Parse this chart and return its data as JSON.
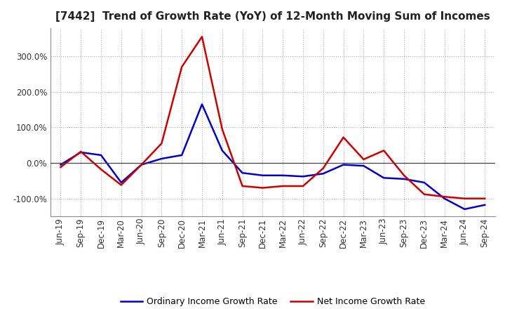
{
  "title": "[7442]  Trend of Growth Rate (YoY) of 12-Month Moving Sum of Incomes",
  "x_labels": [
    "Jun-19",
    "Sep-19",
    "Dec-19",
    "Mar-20",
    "Jun-20",
    "Sep-20",
    "Dec-20",
    "Mar-21",
    "Jun-21",
    "Sep-21",
    "Dec-21",
    "Mar-22",
    "Jun-22",
    "Sep-22",
    "Dec-22",
    "Mar-23",
    "Jun-23",
    "Sep-23",
    "Dec-23",
    "Mar-24",
    "Jun-24",
    "Sep-24"
  ],
  "ordinary_income": [
    -5,
    30,
    22,
    -55,
    -5,
    12,
    22,
    165,
    35,
    -28,
    -35,
    -35,
    -38,
    -30,
    -5,
    -8,
    -42,
    -45,
    -55,
    -100,
    -130,
    -118
  ],
  "net_income": [
    -12,
    32,
    -18,
    -62,
    -5,
    55,
    270,
    355,
    95,
    -65,
    -70,
    -65,
    -65,
    -15,
    72,
    10,
    35,
    -35,
    -88,
    -95,
    -100,
    -100
  ],
  "ordinary_color": "#0000cc",
  "net_color": "#cc0000",
  "ylim": [
    -150,
    380
  ],
  "yticks": [
    -100,
    0,
    100,
    200,
    300
  ],
  "background_color": "#ffffff",
  "grid_color": "#aaaaaa",
  "legend_labels": [
    "Ordinary Income Growth Rate",
    "Net Income Growth Rate"
  ],
  "title_fontsize": 11,
  "tick_fontsize": 8.5,
  "legend_fontsize": 9
}
